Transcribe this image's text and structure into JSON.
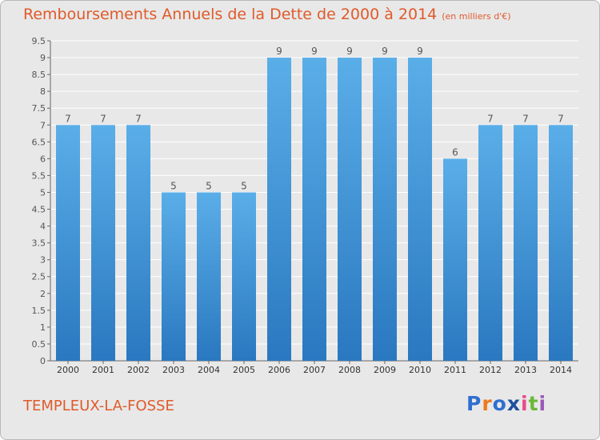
{
  "title": "Remboursements Annuels de la Dette de 2000 à 2014",
  "unit_note": "(en milliers d'€)",
  "town": "TEMPLEUX-LA-FOSSE",
  "logo": {
    "letters": [
      "P",
      "r",
      "o",
      "x",
      "i",
      "t",
      "i"
    ],
    "colors": [
      "#2f6fd0",
      "#ec7a1c",
      "#2f6fd0",
      "#1f4fa0",
      "#e84b8a",
      "#6ab83a",
      "#9b59b6"
    ]
  },
  "colors": {
    "bar_top": "#5aaee8",
    "bar_bottom": "#2a78c0",
    "text": "#555555",
    "grid": "#ffffff",
    "accent": "#e05a2a"
  },
  "chart_data": {
    "type": "bar",
    "categories": [
      "2000",
      "2001",
      "2002",
      "2003",
      "2004",
      "2005",
      "2006",
      "2007",
      "2008",
      "2009",
      "2010",
      "2011",
      "2012",
      "2013",
      "2014"
    ],
    "values": [
      7,
      7,
      7,
      5,
      5,
      5,
      9,
      9,
      9,
      9,
      9,
      6,
      7,
      7,
      7
    ],
    "ylim": [
      0,
      9.5
    ],
    "yticks": [
      "0",
      "0.5",
      "1",
      "1.5",
      "2",
      "2.5",
      "3",
      "3.5",
      "4",
      "4.5",
      "5",
      "5.5",
      "6",
      "6.5",
      "7",
      "7.5",
      "8",
      "8.5",
      "9",
      "9.5"
    ],
    "grid": true,
    "title": "Remboursements Annuels de la Dette de 2000 à 2014",
    "xlabel": "",
    "ylabel": ""
  }
}
